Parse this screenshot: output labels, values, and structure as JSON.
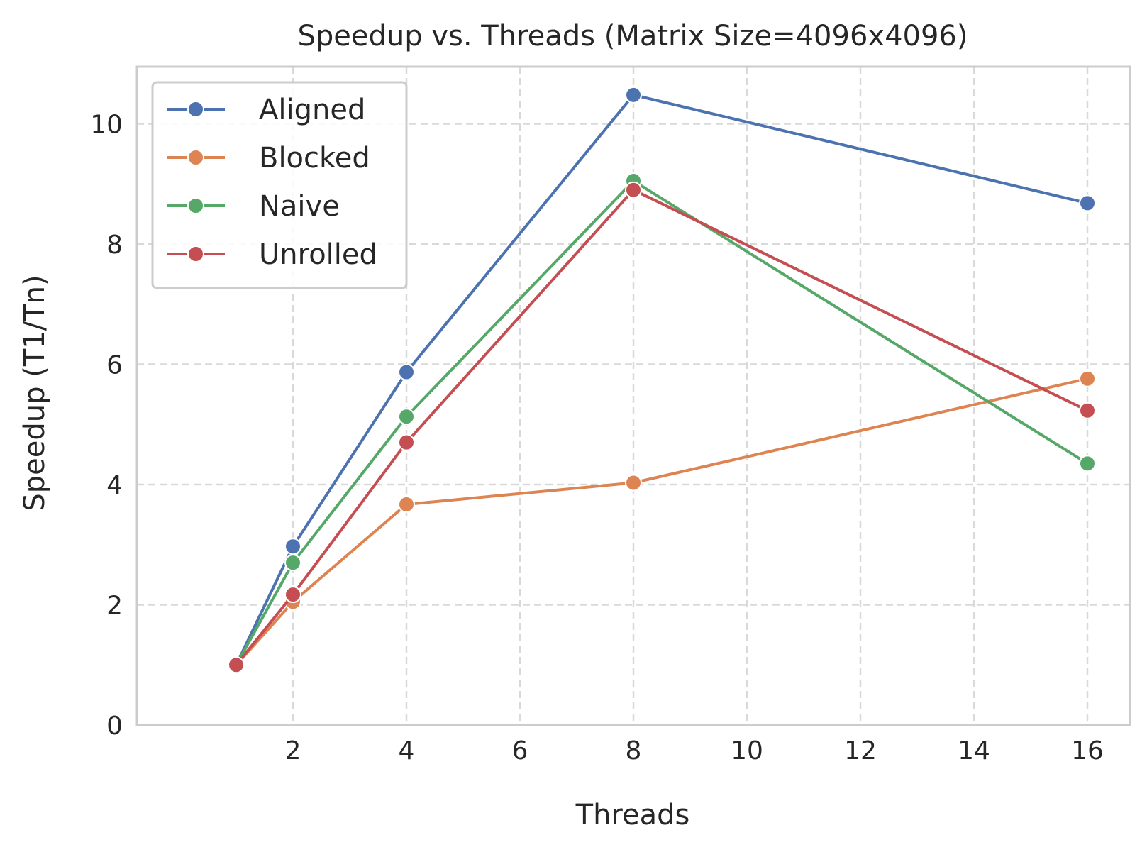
{
  "chart_data": {
    "type": "line",
    "title": "Speedup vs. Threads (Matrix Size=4096x4096)",
    "xlabel": "Threads",
    "ylabel": "Speedup (T1/Tn)",
    "x": [
      1,
      2,
      4,
      8,
      16
    ],
    "xlim": [
      -0.75,
      16.75
    ],
    "ylim": [
      0,
      10.95
    ],
    "xticks": [
      2,
      4,
      6,
      8,
      10,
      12,
      14,
      16
    ],
    "yticks": [
      0,
      2,
      4,
      6,
      8,
      10
    ],
    "grid": true,
    "grid_style": "dashed",
    "legend_position": "upper-left",
    "series": [
      {
        "name": "Aligned",
        "color": "#4c72b0",
        "values": [
          1.0,
          2.97,
          5.87,
          10.48,
          8.68
        ]
      },
      {
        "name": "Blocked",
        "color": "#dd8452",
        "values": [
          1.0,
          2.05,
          3.67,
          4.03,
          5.76
        ]
      },
      {
        "name": "Naive",
        "color": "#55a868",
        "values": [
          1.0,
          2.7,
          5.13,
          9.05,
          4.35
        ]
      },
      {
        "name": "Unrolled",
        "color": "#c44e52",
        "values": [
          1.0,
          2.17,
          4.7,
          8.9,
          5.23
        ]
      }
    ]
  }
}
